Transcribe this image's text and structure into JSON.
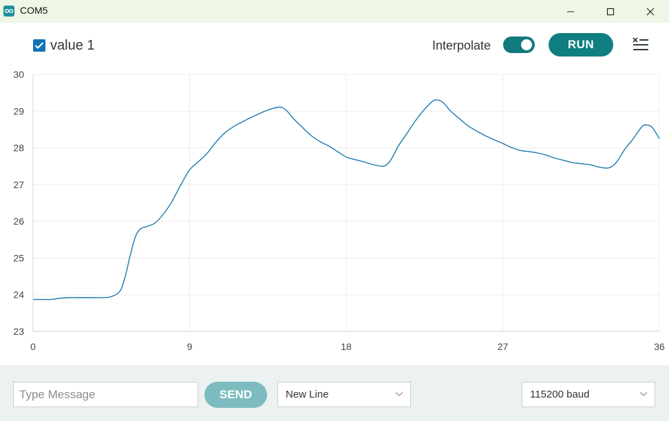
{
  "window": {
    "title": "COM5"
  },
  "toolbar": {
    "series_label": "value 1",
    "series_checked": true,
    "interpolate_label": "Interpolate",
    "interpolate_on": true,
    "run_label": "RUN",
    "accent_color": "#0f7f81"
  },
  "bottom": {
    "message_placeholder": "Type Message",
    "message_value": "",
    "send_label": "SEND",
    "line_ending": "New Line",
    "baud_rate": "115200 baud"
  },
  "icons": [
    "arduino-app-icon",
    "minimize-icon",
    "maximize-icon",
    "close-icon",
    "checkmark-icon",
    "clear-output-icon",
    "chevron-down-icon"
  ],
  "chart_data": {
    "type": "line",
    "title": "",
    "xlabel": "",
    "ylabel": "",
    "xlim": [
      0,
      36
    ],
    "ylim": [
      23,
      30
    ],
    "x_ticks": [
      0,
      9,
      18,
      27,
      36
    ],
    "y_ticks": [
      23,
      24,
      25,
      26,
      27,
      28,
      29,
      30
    ],
    "grid": true,
    "series": [
      {
        "color": "#1a78b0",
        "x": [
          0,
          0.5,
          1,
          1.5,
          2,
          2.5,
          3,
          3.5,
          4,
          4.5,
          5,
          5.3,
          5.6,
          5.9,
          6.2,
          6.5,
          7,
          7.5,
          8,
          8.5,
          9,
          9.5,
          10,
          10.5,
          11,
          11.5,
          12,
          12.5,
          13,
          13.5,
          14,
          14.3,
          14.6,
          15,
          15.5,
          16,
          16.5,
          17,
          17.5,
          18,
          18.5,
          19,
          19.5,
          20,
          20.3,
          20.6,
          21,
          21.5,
          22,
          22.5,
          23,
          23.3,
          23.6,
          24,
          24.5,
          25,
          25.5,
          26,
          26.5,
          27,
          27.5,
          28,
          28.5,
          29,
          29.5,
          30,
          30.5,
          31,
          31.5,
          32,
          32.5,
          33,
          33.3,
          33.6,
          34,
          34.5,
          35,
          35.3,
          35.6,
          36
        ],
        "y": [
          23.87,
          23.87,
          23.87,
          23.9,
          23.92,
          23.92,
          23.92,
          23.92,
          23.92,
          23.95,
          24.1,
          24.5,
          25.1,
          25.6,
          25.8,
          25.85,
          25.95,
          26.2,
          26.55,
          27.0,
          27.4,
          27.62,
          27.85,
          28.15,
          28.4,
          28.57,
          28.7,
          28.82,
          28.93,
          29.03,
          29.1,
          29.1,
          29.0,
          28.78,
          28.55,
          28.33,
          28.17,
          28.05,
          27.9,
          27.75,
          27.68,
          27.62,
          27.55,
          27.5,
          27.53,
          27.7,
          28.05,
          28.4,
          28.75,
          29.05,
          29.28,
          29.3,
          29.22,
          29.0,
          28.8,
          28.6,
          28.46,
          28.33,
          28.22,
          28.12,
          28.01,
          27.93,
          27.9,
          27.86,
          27.8,
          27.72,
          27.66,
          27.6,
          27.57,
          27.54,
          27.48,
          27.45,
          27.5,
          27.65,
          27.95,
          28.25,
          28.58,
          28.62,
          28.55,
          28.25
        ]
      }
    ]
  }
}
